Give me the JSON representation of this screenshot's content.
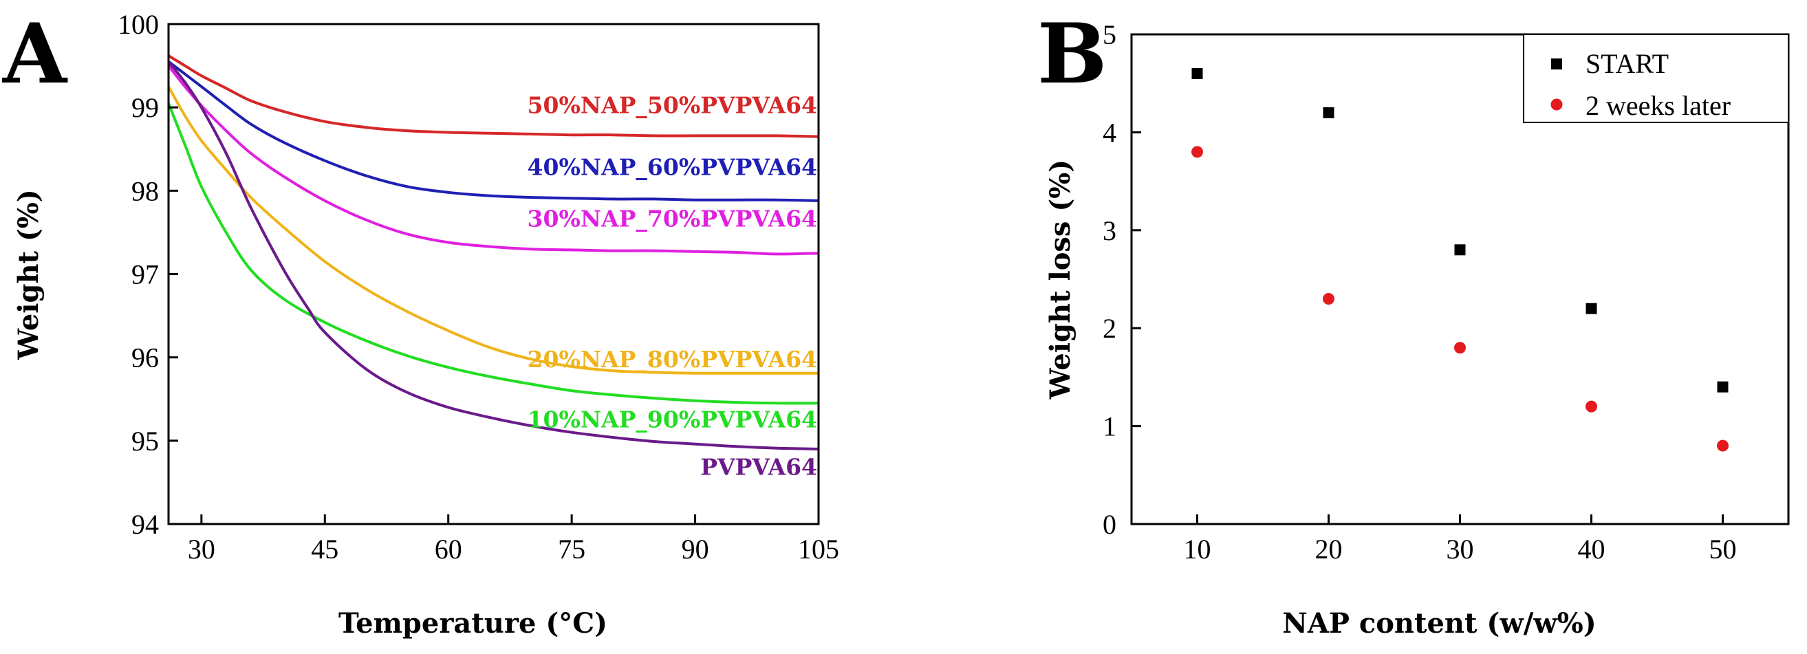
{
  "chart_data": [
    {
      "panel": "A",
      "type": "line",
      "xlabel": "Temperature (°C)",
      "ylabel": "Weight (%)",
      "xlim": [
        26,
        105
      ],
      "ylim": [
        94,
        100
      ],
      "xticks": [
        30,
        45,
        60,
        75,
        90,
        105
      ],
      "yticks": [
        94,
        95,
        96,
        97,
        98,
        99,
        100
      ],
      "series": [
        {
          "name": "50%NAP_50%PVPVA64",
          "color": "#d62728",
          "x": [
            26,
            28,
            30,
            33,
            36,
            40,
            45,
            50,
            55,
            60,
            65,
            70,
            75,
            80,
            85,
            90,
            95,
            100,
            105
          ],
          "y": [
            99.62,
            99.5,
            99.38,
            99.23,
            99.08,
            98.95,
            98.83,
            98.76,
            98.72,
            98.7,
            98.69,
            98.68,
            98.67,
            98.67,
            98.66,
            98.66,
            98.66,
            98.66,
            98.65
          ]
        },
        {
          "name": "40%NAP_60%PVPVA64",
          "color": "#1f1fb4",
          "x": [
            26,
            28,
            30,
            33,
            36,
            40,
            45,
            50,
            55,
            60,
            65,
            70,
            75,
            80,
            85,
            90,
            95,
            100,
            105
          ],
          "y": [
            99.55,
            99.4,
            99.25,
            99.02,
            98.8,
            98.58,
            98.36,
            98.18,
            98.05,
            97.98,
            97.94,
            97.92,
            97.91,
            97.9,
            97.9,
            97.89,
            97.89,
            97.89,
            97.88
          ]
        },
        {
          "name": "30%NAP_70%PVPVA64",
          "color": "#e020e0",
          "x": [
            26,
            28,
            30,
            33,
            36,
            40,
            45,
            50,
            55,
            60,
            65,
            70,
            75,
            80,
            85,
            90,
            95,
            100,
            105
          ],
          "y": [
            99.5,
            99.25,
            99.02,
            98.72,
            98.45,
            98.17,
            97.88,
            97.65,
            97.48,
            97.38,
            97.33,
            97.3,
            97.29,
            97.28,
            97.28,
            97.27,
            97.26,
            97.24,
            97.25
          ]
        },
        {
          "name": "20%NAP_80%PVPVA64",
          "color": "#f0b31a",
          "x": [
            26,
            28,
            30,
            33,
            36,
            40,
            45,
            50,
            55,
            60,
            65,
            70,
            75,
            80,
            85,
            90,
            95,
            100,
            105
          ],
          "y": [
            99.25,
            98.9,
            98.6,
            98.25,
            97.92,
            97.56,
            97.15,
            96.82,
            96.55,
            96.32,
            96.12,
            95.98,
            95.89,
            95.84,
            95.82,
            95.81,
            95.81,
            95.81,
            95.81
          ]
        },
        {
          "name": "10%NAP_90%PVPVA64",
          "color": "#22dd22",
          "x": [
            26,
            28,
            30,
            33,
            36,
            40,
            45,
            50,
            55,
            60,
            65,
            70,
            75,
            80,
            85,
            90,
            95,
            100,
            105
          ],
          "y": [
            99.05,
            98.55,
            98.05,
            97.5,
            97.05,
            96.7,
            96.42,
            96.2,
            96.02,
            95.88,
            95.77,
            95.68,
            95.6,
            95.55,
            95.51,
            95.48,
            95.46,
            95.45,
            95.45
          ]
        },
        {
          "name": "PVPVA64",
          "color": "#6a1a8a",
          "x": [
            26,
            28,
            30,
            33,
            36,
            40,
            43,
            45,
            50,
            55,
            60,
            65,
            70,
            75,
            80,
            85,
            90,
            95,
            100,
            105
          ],
          "y": [
            99.55,
            99.3,
            99.0,
            98.45,
            97.8,
            97.05,
            96.58,
            96.3,
            95.86,
            95.58,
            95.4,
            95.28,
            95.18,
            95.1,
            95.04,
            94.99,
            94.96,
            94.93,
            94.91,
            94.9
          ]
        }
      ],
      "labels": [
        {
          "text": "50%NAP_50%PVPVA64",
          "color": "#d62728",
          "anchor_x": 105,
          "anchor_y": 98.93
        },
        {
          "text": "40%NAP_60%PVPVA64",
          "color": "#1f1fb4",
          "anchor_x": 105,
          "anchor_y": 98.19
        },
        {
          "text": "30%NAP_70%PVPVA64",
          "color": "#e020e0",
          "anchor_x": 105,
          "anchor_y": 97.57
        },
        {
          "text": "20%NAP_80%PVPVA64",
          "color": "#f0b31a",
          "anchor_x": 105,
          "anchor_y": 95.88
        },
        {
          "text": "10%NAP_90%PVPVA64",
          "color": "#22dd22",
          "anchor_x": 105,
          "anchor_y": 95.16
        },
        {
          "text": "PVPVA64",
          "color": "#6a1a8a",
          "anchor_x": 105,
          "anchor_y": 94.59
        }
      ]
    },
    {
      "panel": "B",
      "type": "scatter",
      "xlabel": "NAP content (w/w%)",
      "ylabel": "Weight loss (%)",
      "xlim": [
        5,
        55
      ],
      "ylim": [
        0,
        5
      ],
      "xticks": [
        10,
        20,
        30,
        40,
        50
      ],
      "yticks": [
        0,
        1,
        2,
        3,
        4,
        5
      ],
      "legend_position": "top-right",
      "series": [
        {
          "name": "START",
          "marker": "square",
          "color": "#000000",
          "x": [
            10,
            20,
            30,
            40,
            50
          ],
          "y": [
            4.6,
            4.2,
            2.8,
            2.2,
            1.4
          ]
        },
        {
          "name": "2 weeks later",
          "marker": "circle",
          "color": "#e41a1c",
          "x": [
            10,
            20,
            30,
            40,
            50
          ],
          "y": [
            3.8,
            2.3,
            1.8,
            1.2,
            0.8
          ]
        }
      ]
    }
  ]
}
